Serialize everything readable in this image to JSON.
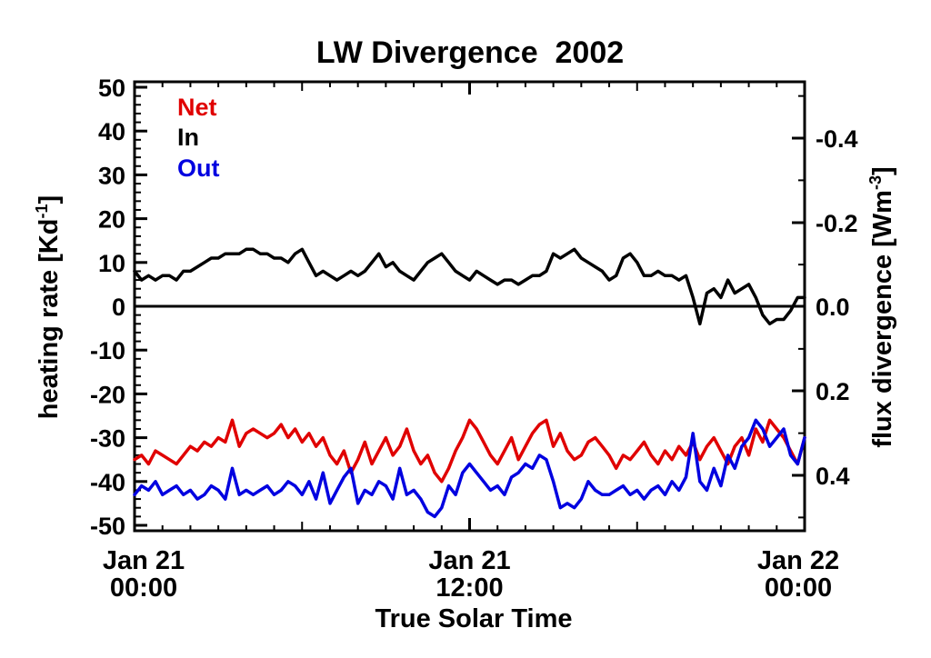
{
  "chart_data": {
    "type": "line",
    "title": "LW Divergence  2002",
    "xlabel": "True Solar Time",
    "ylabel_left_main": "heating rate [Kd",
    "ylabel_left_sup": "-1",
    "ylabel_left_end": "]",
    "ylabel_right_main": "flux divergence [Wm",
    "ylabel_right_sup": "-3",
    "ylabel_right_end": "]",
    "x_ticks": [
      {
        "line1": "Jan 21",
        "line2": "00:00"
      },
      {
        "line1": "Jan 21",
        "line2": "12:00"
      },
      {
        "line1": "Jan 22",
        "line2": "00:00"
      }
    ],
    "xlim_hours": [
      0,
      24
    ],
    "ylim_left": [
      -52,
      50
    ],
    "y_ticks_left": [
      "50",
      "40",
      "30",
      "20",
      "10",
      "0",
      "-10",
      "-20",
      "-30",
      "-40",
      "-50"
    ],
    "y_ticks_right": [
      "-0.4",
      "-0.2",
      "0.0",
      "0.2",
      "0.4"
    ],
    "zero_line": true,
    "legend_position": "top-left",
    "series": [
      {
        "name": "Net",
        "color": "#e00000",
        "hours": [
          0,
          0.25,
          0.5,
          0.75,
          1.0,
          1.25,
          1.5,
          1.75,
          2.0,
          2.25,
          2.5,
          2.75,
          3.0,
          3.25,
          3.5,
          3.75,
          4.0,
          4.25,
          4.5,
          4.75,
          5.0,
          5.25,
          5.5,
          5.75,
          6.0,
          6.25,
          6.5,
          6.75,
          7.0,
          7.25,
          7.5,
          7.75,
          8.0,
          8.25,
          8.5,
          8.75,
          9.0,
          9.25,
          9.5,
          9.75,
          10.0,
          10.25,
          10.5,
          10.75,
          11.0,
          11.25,
          11.5,
          11.75,
          12.0,
          12.25,
          12.5,
          12.75,
          13.0,
          13.25,
          13.5,
          13.75,
          14.0,
          14.25,
          14.5,
          14.75,
          15.0,
          15.25,
          15.5,
          15.75,
          16.0,
          16.25,
          16.5,
          16.75,
          17.0,
          17.25,
          17.5,
          17.75,
          18.0,
          18.25,
          18.5,
          18.75,
          19.0,
          19.25,
          19.5,
          19.75,
          20.0,
          20.25,
          20.5,
          20.75,
          21.0,
          21.25,
          21.5,
          21.75,
          22.0,
          22.25,
          22.5,
          22.75,
          23.0,
          23.25,
          23.5,
          23.75,
          24.0
        ],
        "values": [
          -35,
          -34,
          -36,
          -33,
          -34,
          -35,
          -36,
          -34,
          -32,
          -33,
          -31,
          -32,
          -30,
          -31,
          -26,
          -32,
          -29,
          -28,
          -29,
          -30,
          -29,
          -27,
          -30,
          -28,
          -31,
          -29,
          -32,
          -30,
          -34,
          -36,
          -33,
          -38,
          -35,
          -31,
          -36,
          -33,
          -30,
          -34,
          -32,
          -28,
          -33,
          -36,
          -34,
          -38,
          -40,
          -37,
          -33,
          -30,
          -26,
          -28,
          -31,
          -34,
          -36,
          -33,
          -30,
          -35,
          -32,
          -29,
          -27,
          -26,
          -32,
          -29,
          -33,
          -35,
          -34,
          -31,
          -30,
          -32,
          -34,
          -37,
          -34,
          -35,
          -33,
          -31,
          -34,
          -36,
          -33,
          -35,
          -32,
          -34,
          -31,
          -35,
          -32,
          -30,
          -33,
          -36,
          -32,
          -30,
          -34,
          -28,
          -31,
          -26,
          -28,
          -30,
          -33,
          -36,
          -30
        ]
      },
      {
        "name": "In",
        "color": "#000000",
        "hours": [
          0,
          0.25,
          0.5,
          0.75,
          1.0,
          1.25,
          1.5,
          1.75,
          2.0,
          2.25,
          2.5,
          2.75,
          3.0,
          3.25,
          3.5,
          3.75,
          4.0,
          4.25,
          4.5,
          4.75,
          5.0,
          5.25,
          5.5,
          5.75,
          6.0,
          6.25,
          6.5,
          6.75,
          7.0,
          7.25,
          7.5,
          7.75,
          8.0,
          8.25,
          8.5,
          8.75,
          9.0,
          9.25,
          9.5,
          9.75,
          10.0,
          10.25,
          10.5,
          10.75,
          11.0,
          11.25,
          11.5,
          11.75,
          12.0,
          12.25,
          12.5,
          12.75,
          13.0,
          13.25,
          13.5,
          13.75,
          14.0,
          14.25,
          14.5,
          14.75,
          15.0,
          15.25,
          15.5,
          15.75,
          16.0,
          16.25,
          16.5,
          16.75,
          17.0,
          17.25,
          17.5,
          17.75,
          18.0,
          18.25,
          18.5,
          18.75,
          19.0,
          19.25,
          19.5,
          19.75,
          20.0,
          20.25,
          20.5,
          20.75,
          21.0,
          21.25,
          21.5,
          21.75,
          22.0,
          22.25,
          22.5,
          22.75,
          23.0,
          23.25,
          23.5,
          23.75,
          24.0
        ],
        "values": [
          8,
          6,
          7,
          6,
          7,
          7,
          6,
          8,
          8,
          9,
          10,
          11,
          11,
          12,
          12,
          12,
          13,
          13,
          12,
          12,
          11,
          11,
          10,
          12,
          13,
          10,
          7,
          8,
          7,
          6,
          7,
          8,
          7,
          8,
          10,
          12,
          9,
          10,
          8,
          7,
          6,
          8,
          10,
          11,
          12,
          10,
          8,
          7,
          6,
          8,
          7,
          6,
          5,
          6,
          6,
          5,
          6,
          7,
          7,
          8,
          12,
          11,
          12,
          13,
          11,
          10,
          9,
          8,
          6,
          7,
          11,
          12,
          10,
          7,
          7,
          8,
          7,
          7,
          6,
          7,
          2,
          -4,
          3,
          4,
          2,
          6,
          3,
          4,
          5,
          2,
          -2,
          -4,
          -3,
          -3,
          -1,
          2,
          2
        ]
      },
      {
        "name": "Out",
        "color": "#0000e0",
        "hours": [
          0,
          0.25,
          0.5,
          0.75,
          1.0,
          1.25,
          1.5,
          1.75,
          2.0,
          2.25,
          2.5,
          2.75,
          3.0,
          3.25,
          3.5,
          3.75,
          4.0,
          4.25,
          4.5,
          4.75,
          5.0,
          5.25,
          5.5,
          5.75,
          6.0,
          6.25,
          6.5,
          6.75,
          7.0,
          7.25,
          7.5,
          7.75,
          8.0,
          8.25,
          8.5,
          8.75,
          9.0,
          9.25,
          9.5,
          9.75,
          10.0,
          10.25,
          10.5,
          10.75,
          11.0,
          11.25,
          11.5,
          11.75,
          12.0,
          12.25,
          12.5,
          12.75,
          13.0,
          13.25,
          13.5,
          13.75,
          14.0,
          14.25,
          14.5,
          14.75,
          15.0,
          15.25,
          15.5,
          15.75,
          16.0,
          16.25,
          16.5,
          16.75,
          17.0,
          17.25,
          17.5,
          17.75,
          18.0,
          18.25,
          18.5,
          18.75,
          19.0,
          19.25,
          19.5,
          19.75,
          20.0,
          20.25,
          20.5,
          20.75,
          21.0,
          21.25,
          21.5,
          21.75,
          22.0,
          22.25,
          22.5,
          22.75,
          23.0,
          23.25,
          23.5,
          23.75,
          24.0
        ],
        "values": [
          -43,
          -41,
          -42,
          -40,
          -43,
          -42,
          -41,
          -43,
          -42,
          -44,
          -43,
          -41,
          -42,
          -44,
          -37,
          -43,
          -42,
          -43,
          -42,
          -41,
          -43,
          -42,
          -40,
          -41,
          -43,
          -40,
          -44,
          -38,
          -45,
          -42,
          -39,
          -37,
          -45,
          -42,
          -43,
          -40,
          -41,
          -44,
          -37,
          -43,
          -42,
          -44,
          -47,
          -48,
          -46,
          -41,
          -43,
          -38,
          -36,
          -38,
          -40,
          -42,
          -41,
          -43,
          -39,
          -38,
          -36,
          -37,
          -34,
          -35,
          -40,
          -46,
          -45,
          -46,
          -44,
          -40,
          -42,
          -43,
          -43,
          -42,
          -41,
          -43,
          -42,
          -44,
          -42,
          -41,
          -43,
          -40,
          -42,
          -39,
          -29,
          -40,
          -42,
          -37,
          -41,
          -34,
          -37,
          -32,
          -30,
          -26,
          -28,
          -32,
          -30,
          -28,
          -34,
          -36,
          -30
        ]
      }
    ]
  }
}
